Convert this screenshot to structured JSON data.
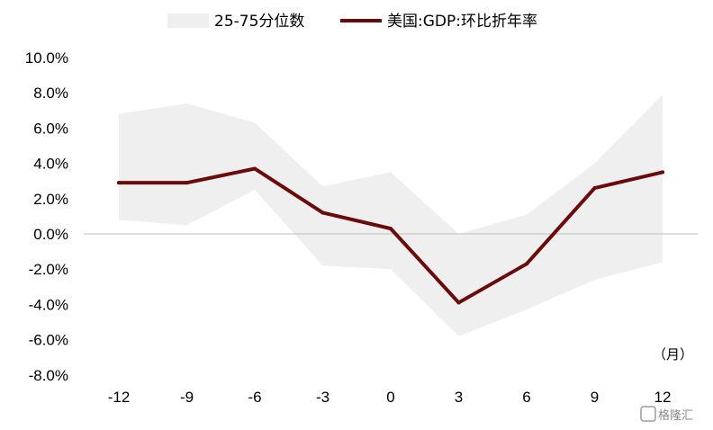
{
  "chart_data": {
    "type": "line",
    "x": [
      -12,
      -9,
      -6,
      -3,
      0,
      3,
      6,
      9,
      12
    ],
    "x_tick_labels": [
      "-12",
      "-9",
      "-6",
      "-3",
      "0",
      "3",
      "6",
      "9",
      "12"
    ],
    "x_unit_label": "（月）",
    "ylim": [
      -8,
      10
    ],
    "y_ticks": [
      10,
      8,
      6,
      4,
      2,
      0,
      -2,
      -4,
      -6,
      -8
    ],
    "y_tick_labels": [
      "10.0%",
      "8.0%",
      "6.0%",
      "4.0%",
      "2.0%",
      "0.0%",
      "-2.0%",
      "-4.0%",
      "-6.0%",
      "-8.0%"
    ],
    "legend_position": "top",
    "grid": false,
    "band": {
      "name": "25-75分位数",
      "color": "#efefef",
      "upper": [
        6.8,
        7.4,
        6.3,
        2.7,
        3.5,
        0.0,
        1.1,
        4.0,
        7.9
      ],
      "lower": [
        0.8,
        0.5,
        2.5,
        -1.8,
        -2.0,
        -5.8,
        -4.3,
        -2.6,
        -1.6
      ]
    },
    "series": [
      {
        "name": "美国:GDP:环比折年率",
        "color": "#6b0a0a",
        "values": [
          2.9,
          2.9,
          3.7,
          1.2,
          0.3,
          -3.9,
          -1.7,
          2.6,
          3.5
        ]
      }
    ]
  },
  "watermark": "格隆汇"
}
